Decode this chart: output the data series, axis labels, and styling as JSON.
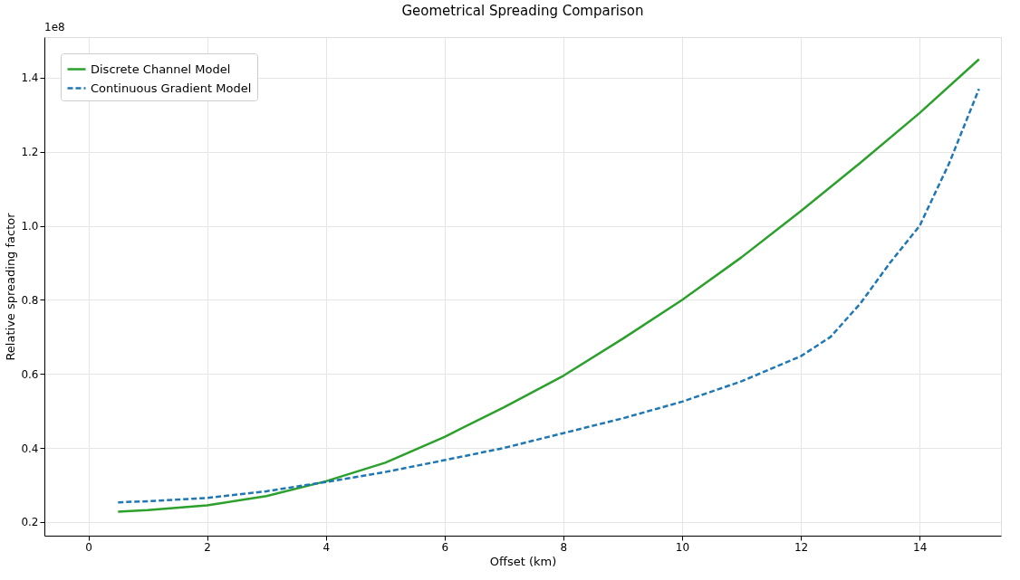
{
  "chart_data": {
    "type": "line",
    "title": "Geometrical Spreading Comparison",
    "xlabel": "Offset (km)",
    "ylabel": "Relative spreading factor",
    "annotations": [
      "1e8"
    ],
    "xlim": [
      -0.74,
      15.37
    ],
    "xticks": [
      0,
      2,
      4,
      6,
      8,
      10,
      12,
      14
    ],
    "ylim": [
      0.163,
      1.51
    ],
    "yticks": [
      0.2,
      0.4,
      0.6,
      0.8,
      {
        "value": 1.0,
        "label": "1.0"
      },
      1.2,
      1.4
    ],
    "grid": true,
    "legend": "top left",
    "series": [
      {
        "name": "Discrete Channel Model",
        "color": "#2ca02c",
        "line_style": "solid",
        "x": [
          0.5,
          1,
          2,
          3,
          4,
          5,
          6,
          7,
          8,
          9,
          10,
          11,
          12,
          13,
          14,
          15
        ],
        "values": [
          0.228,
          0.232,
          0.245,
          0.27,
          0.31,
          0.36,
          0.43,
          0.51,
          0.595,
          0.695,
          0.8,
          0.915,
          1.04,
          1.17,
          1.305,
          1.45
        ]
      },
      {
        "name": "Continuous Gradient Model",
        "color": "#1f77b4",
        "line_style": "dashed",
        "x": [
          0.5,
          1,
          2,
          3,
          4,
          5,
          6,
          7,
          8,
          9,
          10,
          11,
          12,
          12.5,
          13,
          13.5,
          14,
          14.5,
          15
        ],
        "values": [
          0.253,
          0.256,
          0.265,
          0.283,
          0.308,
          0.335,
          0.367,
          0.4,
          0.44,
          0.48,
          0.525,
          0.58,
          0.648,
          0.7,
          0.79,
          0.9,
          1.0,
          1.17,
          1.37
        ]
      }
    ]
  }
}
